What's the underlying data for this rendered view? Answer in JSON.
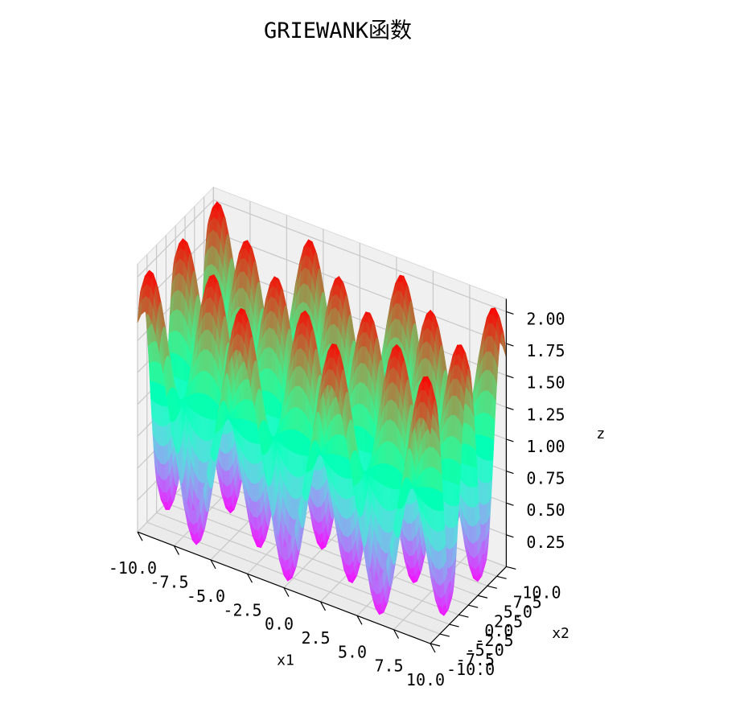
{
  "chart_data": {
    "type": "surface",
    "title": "GRIEWANK函数",
    "xlabel": "x1",
    "ylabel": "x2",
    "zlabel": "z",
    "xlim": [
      -10,
      10
    ],
    "ylim": [
      -10,
      10
    ],
    "zlim": [
      0,
      2.1
    ],
    "x_ticks": [
      "-10.0",
      "-7.5",
      "-5.0",
      "-2.5",
      "0.0",
      "2.5",
      "5.0",
      "7.5",
      "10.0"
    ],
    "y_ticks": [
      "-10.0",
      "-7.5",
      "-5.0",
      "-2.5",
      "0.0",
      "2.5",
      "5.0",
      "7.5",
      "10.0"
    ],
    "z_ticks": [
      "0.25",
      "0.50",
      "0.75",
      "1.00",
      "1.25",
      "1.50",
      "1.75",
      "2.00"
    ],
    "function": "z = 1 + (x1^2 + x2^2)/4000 - cos(x1)·cos(x2/√2)",
    "colormap": "rainbow",
    "grid": true,
    "pane_color": "#f2f2f2",
    "grid_color": "#c8c8c8"
  }
}
